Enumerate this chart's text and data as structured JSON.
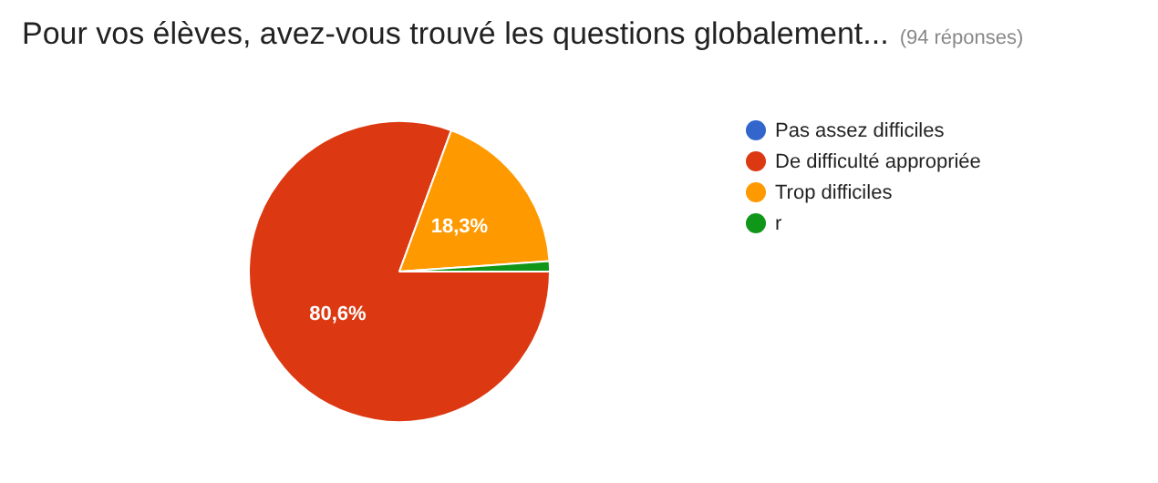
{
  "chart_data": {
    "type": "pie",
    "title": "Pour vos élèves, avez-vous trouvé les questions globalement...",
    "subtitle": "(94 réponses)",
    "categories": [
      "Pas assez difficiles",
      "De difficulté appropriée",
      "Trop difficiles",
      "r"
    ],
    "values": [
      0,
      80.6,
      18.3,
      1.1
    ],
    "colors": [
      "#3366cc",
      "#dc3912",
      "#ff9900",
      "#109618"
    ],
    "value_labels": [
      null,
      "80,6%",
      "18,3%",
      null
    ],
    "legend": "right"
  }
}
